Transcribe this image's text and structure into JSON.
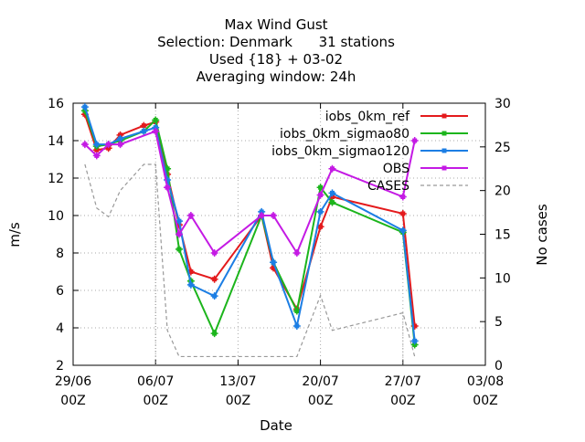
{
  "chart_data": {
    "type": "line",
    "title": [
      "Max Wind Gust",
      "Selection: Denmark      31 stations",
      "Used {18} + 03-02",
      "Averaging window: 24h"
    ],
    "xlabel": "Date",
    "ylabel": "m/s",
    "y2label": "No cases",
    "xlim": [
      0,
      35
    ],
    "ylim": [
      2,
      16
    ],
    "y2lim": [
      0,
      30
    ],
    "grid": "dotted",
    "legend_position": "top-right",
    "x_ticks": [
      {
        "x": 0,
        "line1": "29/06",
        "line2": "00Z"
      },
      {
        "x": 7,
        "line1": "06/07",
        "line2": "00Z"
      },
      {
        "x": 14,
        "line1": "13/07",
        "line2": "00Z"
      },
      {
        "x": 21,
        "line1": "20/07",
        "line2": "00Z"
      },
      {
        "x": 28,
        "line1": "27/07",
        "line2": "00Z"
      },
      {
        "x": 35,
        "line1": "03/08",
        "line2": "00Z"
      }
    ],
    "y_ticks": [
      2,
      4,
      6,
      8,
      10,
      12,
      14,
      16
    ],
    "y2_ticks": [
      0,
      5,
      10,
      15,
      20,
      25,
      30
    ],
    "series": [
      {
        "name": "iobs_0km_ref",
        "color": "#e41a1c",
        "marker": "plus",
        "points": [
          [
            1,
            15.4
          ],
          [
            2,
            13.5
          ],
          [
            3,
            13.6
          ],
          [
            4,
            14.3
          ],
          [
            6,
            14.8
          ],
          [
            7,
            15.0
          ],
          [
            8,
            12.2
          ],
          [
            9,
            9.5
          ],
          [
            10,
            7.0
          ],
          [
            12,
            6.6
          ],
          [
            16,
            10.0
          ],
          [
            17,
            7.2
          ],
          [
            19,
            5.0
          ],
          [
            21,
            9.4
          ],
          [
            22,
            11.0
          ],
          [
            28,
            10.1
          ],
          [
            29,
            4.1
          ]
        ]
      },
      {
        "name": "iobs_0km_sigmao80",
        "color": "#1cb51c",
        "marker": "plus",
        "points": [
          [
            1,
            15.6
          ],
          [
            2,
            13.7
          ],
          [
            3,
            13.8
          ],
          [
            4,
            14.0
          ],
          [
            6,
            14.5
          ],
          [
            7,
            15.1
          ],
          [
            8,
            12.5
          ],
          [
            9,
            8.2
          ],
          [
            10,
            6.5
          ],
          [
            12,
            3.7
          ],
          [
            16,
            10.0
          ],
          [
            17,
            7.5
          ],
          [
            19,
            4.9
          ],
          [
            21,
            11.5
          ],
          [
            22,
            10.7
          ],
          [
            28,
            9.1
          ],
          [
            29,
            3.1
          ]
        ]
      },
      {
        "name": "iobs_0km_sigmao120",
        "color": "#1c7ee4",
        "marker": "plus",
        "points": [
          [
            1,
            15.8
          ],
          [
            2,
            13.8
          ],
          [
            3,
            13.8
          ],
          [
            4,
            14.1
          ],
          [
            6,
            14.5
          ],
          [
            7,
            14.7
          ],
          [
            8,
            11.9
          ],
          [
            9,
            9.7
          ],
          [
            10,
            6.3
          ],
          [
            12,
            5.7
          ],
          [
            16,
            10.2
          ],
          [
            17,
            7.5
          ],
          [
            19,
            4.1
          ],
          [
            21,
            10.2
          ],
          [
            22,
            11.2
          ],
          [
            28,
            9.2
          ],
          [
            29,
            3.3
          ]
        ]
      },
      {
        "name": "OBS",
        "color": "#c41ae4",
        "marker": "plus",
        "points": [
          [
            1,
            13.8
          ],
          [
            2,
            13.2
          ],
          [
            3,
            13.8
          ],
          [
            4,
            13.8
          ],
          [
            7,
            14.5
          ],
          [
            8,
            11.5
          ],
          [
            9,
            9.0
          ],
          [
            10,
            10.0
          ],
          [
            12,
            8.0
          ],
          [
            16,
            10.0
          ],
          [
            17,
            10.0
          ],
          [
            19,
            8.0
          ],
          [
            21,
            11.1
          ],
          [
            22,
            12.5
          ],
          [
            28,
            11.0
          ],
          [
            29,
            14.0
          ]
        ]
      }
    ],
    "cases": {
      "name": "CASES",
      "color": "#999999",
      "axis": "y2",
      "style": "dashed",
      "points": [
        [
          1,
          23
        ],
        [
          2,
          18
        ],
        [
          3,
          17
        ],
        [
          4,
          20
        ],
        [
          6,
          23
        ],
        [
          7,
          23
        ],
        [
          8,
          4
        ],
        [
          9,
          1
        ],
        [
          10,
          1
        ],
        [
          12,
          1
        ],
        [
          16,
          1
        ],
        [
          17,
          1
        ],
        [
          19,
          1
        ],
        [
          21,
          8
        ],
        [
          22,
          4
        ],
        [
          28,
          6
        ],
        [
          29,
          1
        ]
      ]
    }
  }
}
